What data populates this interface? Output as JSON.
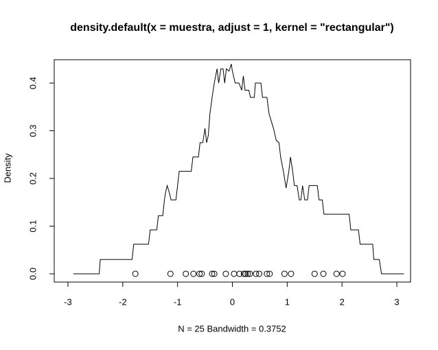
{
  "chart_data": {
    "type": "line",
    "title": "density.default(x = muestra, adjust = 1, kernel = \"rectangular\")",
    "x_label": "N = 25   Bandwidth = 0.3752",
    "y_label": "Density",
    "color": "#000000",
    "x": [
      -2.9,
      -2.43,
      -2.41,
      -1.83,
      -1.8,
      -1.53,
      -1.5,
      -1.38,
      -1.35,
      -1.27,
      -1.24,
      -1.22,
      -1.19,
      -1.15,
      -1.12,
      -1.03,
      -1.0,
      -0.97,
      -0.75,
      -0.72,
      -0.62,
      -0.59,
      -0.54,
      -0.5,
      -0.47,
      -0.44,
      -0.41,
      -0.37,
      -0.33,
      -0.28,
      -0.25,
      -0.21,
      -0.17,
      -0.14,
      -0.11,
      -0.06,
      -0.02,
      0.0,
      0.05,
      0.12,
      0.17,
      0.2,
      0.23,
      0.3,
      0.33,
      0.4,
      0.42,
      0.52,
      0.55,
      0.63,
      0.67,
      0.75,
      0.8,
      0.85,
      0.88,
      0.93,
      0.98,
      1.03,
      1.06,
      1.1,
      1.13,
      1.18,
      1.22,
      1.25,
      1.28,
      1.32,
      1.37,
      1.4,
      1.55,
      1.58,
      1.64,
      1.67,
      2.13,
      2.16,
      2.3,
      2.33,
      2.56,
      2.58,
      2.68,
      2.72,
      3.13
    ],
    "values": [
      0,
      0,
      0.03,
      0.03,
      0.062,
      0.062,
      0.092,
      0.092,
      0.122,
      0.122,
      0.155,
      0.17,
      0.185,
      0.17,
      0.155,
      0.155,
      0.185,
      0.215,
      0.215,
      0.245,
      0.245,
      0.275,
      0.275,
      0.305,
      0.275,
      0.29,
      0.335,
      0.37,
      0.4,
      0.43,
      0.4,
      0.43,
      0.43,
      0.4,
      0.43,
      0.425,
      0.44,
      0.425,
      0.4,
      0.4,
      0.385,
      0.415,
      0.385,
      0.385,
      0.37,
      0.37,
      0.4,
      0.4,
      0.37,
      0.37,
      0.335,
      0.305,
      0.28,
      0.275,
      0.245,
      0.215,
      0.18,
      0.215,
      0.245,
      0.215,
      0.185,
      0.185,
      0.155,
      0.155,
      0.185,
      0.155,
      0.155,
      0.185,
      0.185,
      0.155,
      0.155,
      0.125,
      0.125,
      0.092,
      0.092,
      0.062,
      0.062,
      0.03,
      0.03,
      0,
      0
    ],
    "points_x": [
      -1.77,
      -1.13,
      -0.85,
      -0.71,
      -0.6,
      -0.56,
      -0.37,
      -0.33,
      -0.12,
      0.03,
      0.13,
      0.21,
      0.24,
      0.28,
      0.32,
      0.43,
      0.49,
      0.63,
      0.68,
      0.95,
      1.07,
      1.5,
      1.66,
      1.9,
      2.01
    ],
    "points_y": [
      0,
      0,
      0,
      0,
      0,
      0,
      0,
      0,
      0,
      0,
      0,
      0,
      0,
      0,
      0,
      0,
      0,
      0,
      0,
      0,
      0,
      0,
      0,
      0,
      0
    ],
    "xlim": [
      -3.25,
      3.25
    ],
    "ylim": [
      -0.0173,
      0.449
    ],
    "xticks": [
      -3,
      -2,
      -1,
      0,
      1,
      2,
      3
    ],
    "yticks": [
      {
        "value": 0,
        "label": "0.0"
      },
      {
        "value": 0.1,
        "label": "0.1"
      },
      {
        "value": 0.2,
        "label": "0.2"
      },
      {
        "value": 0.3,
        "label": "0.3"
      },
      {
        "value": 0.4,
        "label": "0.4"
      }
    ]
  }
}
